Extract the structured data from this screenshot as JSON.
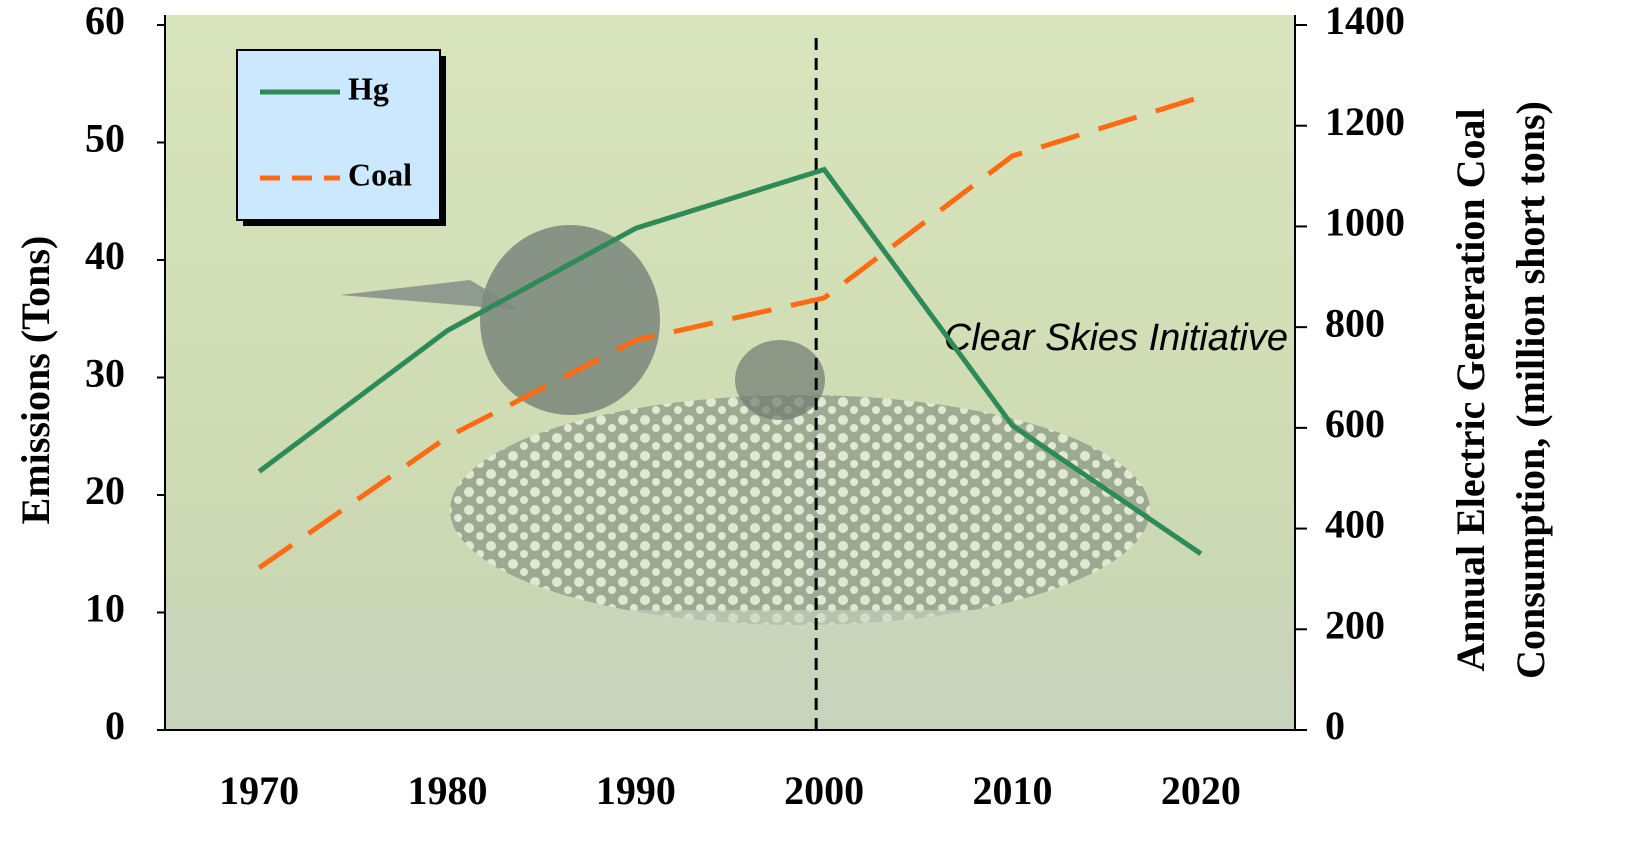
{
  "chart_data": {
    "type": "line",
    "ylabel": "Emissions (Tons)",
    "y2label": [
      "Annual Electric Generation Coal",
      "Consumption, (million short tons)"
    ],
    "categories": [
      "1970",
      "1980",
      "1990",
      "2000",
      "2010",
      "2020"
    ],
    "series": [
      {
        "name": "Hg",
        "color": "#2e8b57",
        "line_style": "solid",
        "values": [
          22.0,
          34.0,
          42.7,
          47.7,
          25.9,
          15.0
        ]
      },
      {
        "name": "Coal",
        "color": "#ff6a13",
        "line_style": "dashed",
        "axis": "y2",
        "values": [
          322,
          582,
          774,
          858,
          1140,
          1257
        ]
      }
    ],
    "ylim": [
      0,
      60
    ],
    "yticks": [
      0,
      10,
      20,
      30,
      40,
      50,
      60
    ],
    "y2lim": [
      0,
      1400
    ],
    "y2ticks": [
      0,
      200,
      400,
      600,
      800,
      1000,
      1200,
      1400
    ],
    "annotation": {
      "text": "Clear Skies Initiative",
      "x": "2000"
    },
    "legend": "top-left"
  }
}
